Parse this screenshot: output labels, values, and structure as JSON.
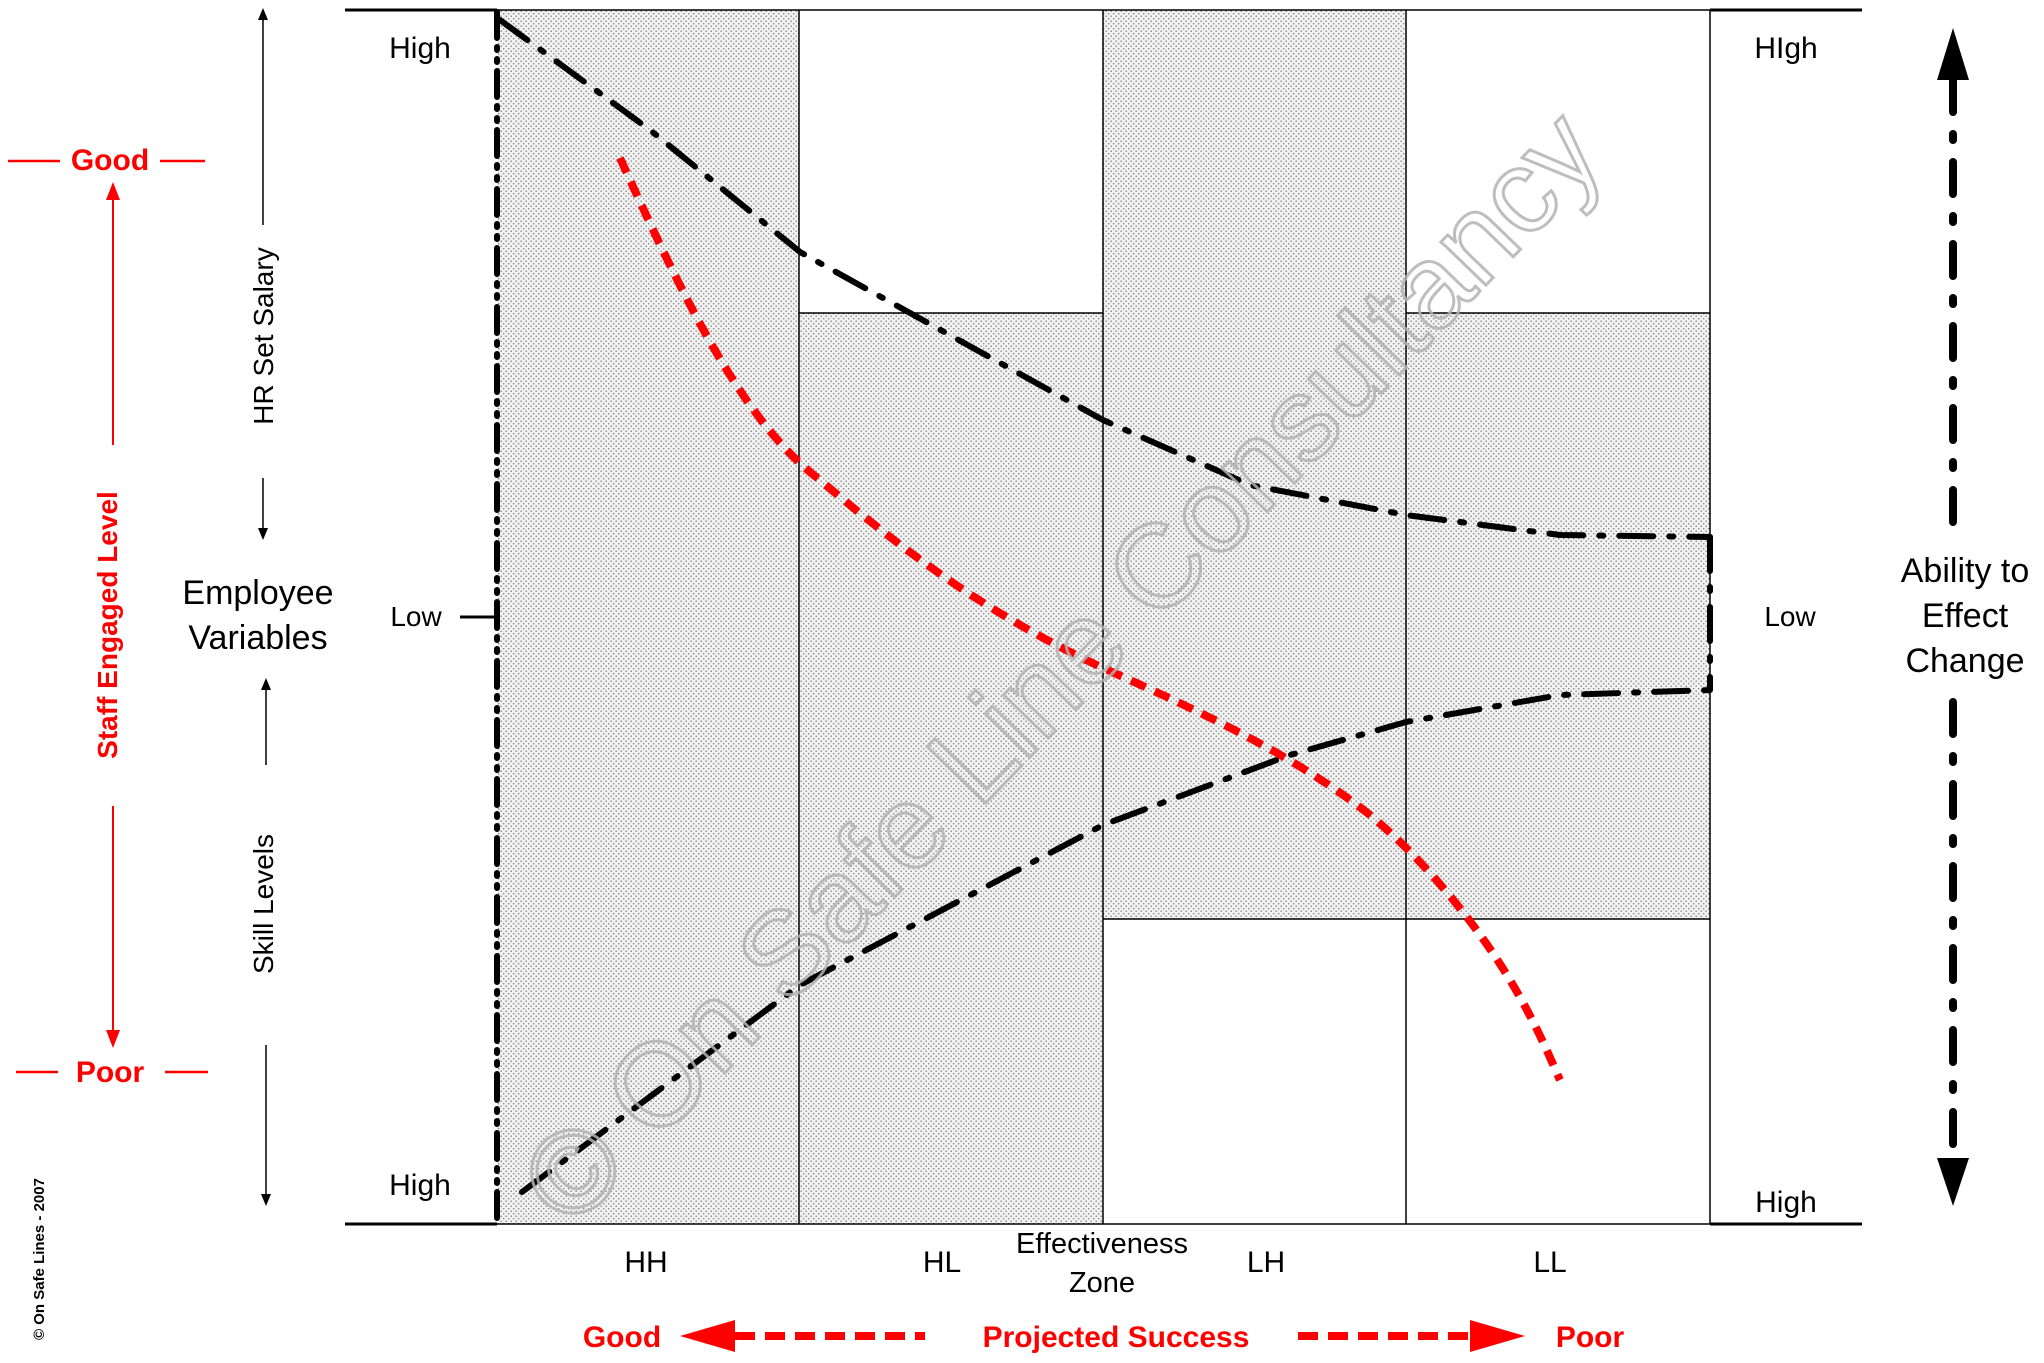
{
  "watermark": "© On Safe Line Consultancy",
  "copyright": "© On Safe Lines - 2007",
  "left_axis": {
    "title": "Staff Engaged Level",
    "top_label": "Good",
    "bottom_label": "Poor"
  },
  "employee_axis": {
    "title_line1": "Employee",
    "title_line2": "Variables",
    "upper_label": "HR Set Salary",
    "lower_label": "Skill Levels"
  },
  "left_scale": {
    "top": "High",
    "middle": "Low",
    "bottom": "High"
  },
  "right_scale": {
    "top": "HIgh",
    "middle": "Low",
    "bottom": "High"
  },
  "zones": [
    {
      "label": "HH"
    },
    {
      "label": "HL"
    },
    {
      "label": "LH"
    },
    {
      "label": "LL"
    }
  ],
  "zone_axis": {
    "line1": "Effectiveness",
    "line2": "Zone"
  },
  "projected": {
    "good": "Good",
    "title": "Projected Success",
    "poor": "Poor"
  },
  "right_axis": {
    "line1": "Ability to",
    "line2": "Effect",
    "line3": "Change"
  },
  "colors": {
    "red": "#ff0000",
    "black": "#000000",
    "shade": "#ececec"
  }
}
